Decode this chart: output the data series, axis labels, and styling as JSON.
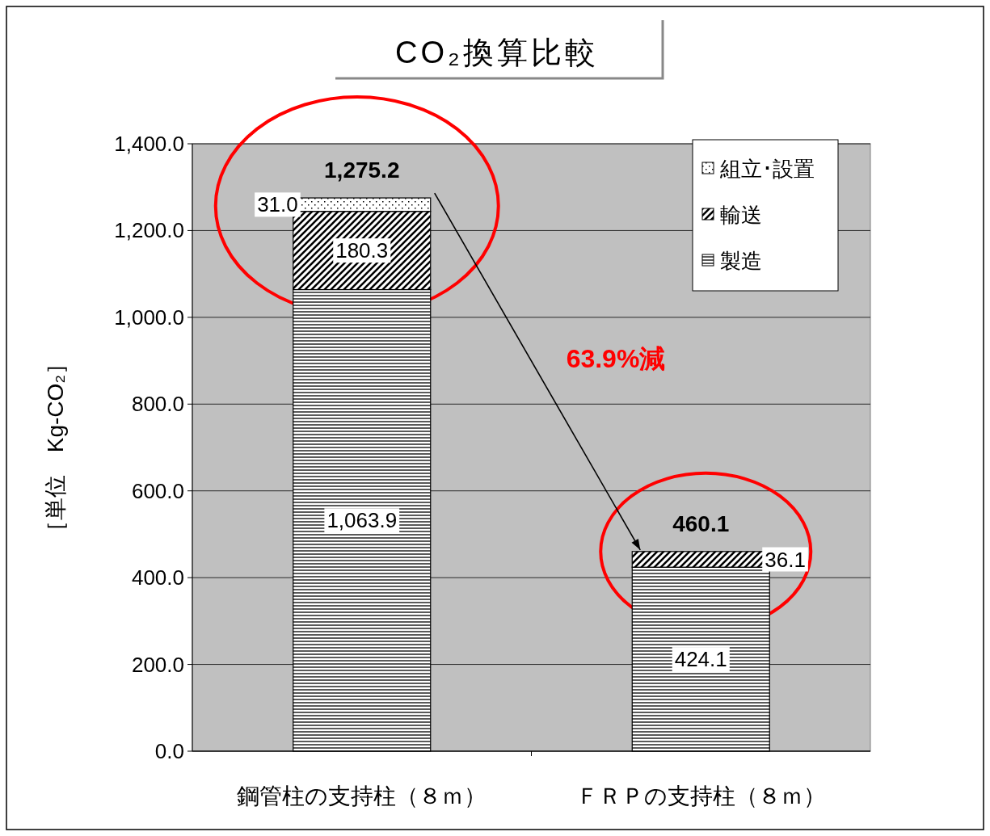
{
  "chart_data": {
    "type": "bar",
    "title": "CO₂換算比較",
    "ylabel": "［単位　Kg-CO₂］",
    "stacked": true,
    "categories": [
      "鋼管柱の支持柱（８ｍ）",
      "ＦＲＰの支持柱（８ｍ）"
    ],
    "series": [
      {
        "name": "製造",
        "color": "#000000",
        "values": [
          1063.9,
          424.1
        ],
        "value_labels": [
          "1,063.9",
          "424.1"
        ]
      },
      {
        "name": "輸送",
        "color": "#000000",
        "values": [
          180.3,
          36.1
        ],
        "value_labels": [
          "180.3",
          "36.1"
        ]
      },
      {
        "name": "組立･設置",
        "color": "#000000",
        "values": [
          31.0,
          null
        ],
        "value_labels": [
          "31.0",
          null
        ]
      }
    ],
    "totals": [
      "1,275.2",
      "460.1"
    ],
    "annotations": [
      "63.9%減"
    ],
    "ylim": [
      0,
      1400
    ],
    "yticks": [
      {
        "value": 0,
        "label": "0.0"
      },
      {
        "value": 200,
        "label": "200.0"
      },
      {
        "value": 400,
        "label": "400.0"
      },
      {
        "value": 600,
        "label": "600.0"
      },
      {
        "value": 800,
        "label": "800.0"
      },
      {
        "value": 1000,
        "label": "1,000.0"
      },
      {
        "value": 1200,
        "label": "1,200.0"
      },
      {
        "value": 1400,
        "label": "1,400.0"
      }
    ],
    "grid": "y",
    "legend": "top right"
  }
}
